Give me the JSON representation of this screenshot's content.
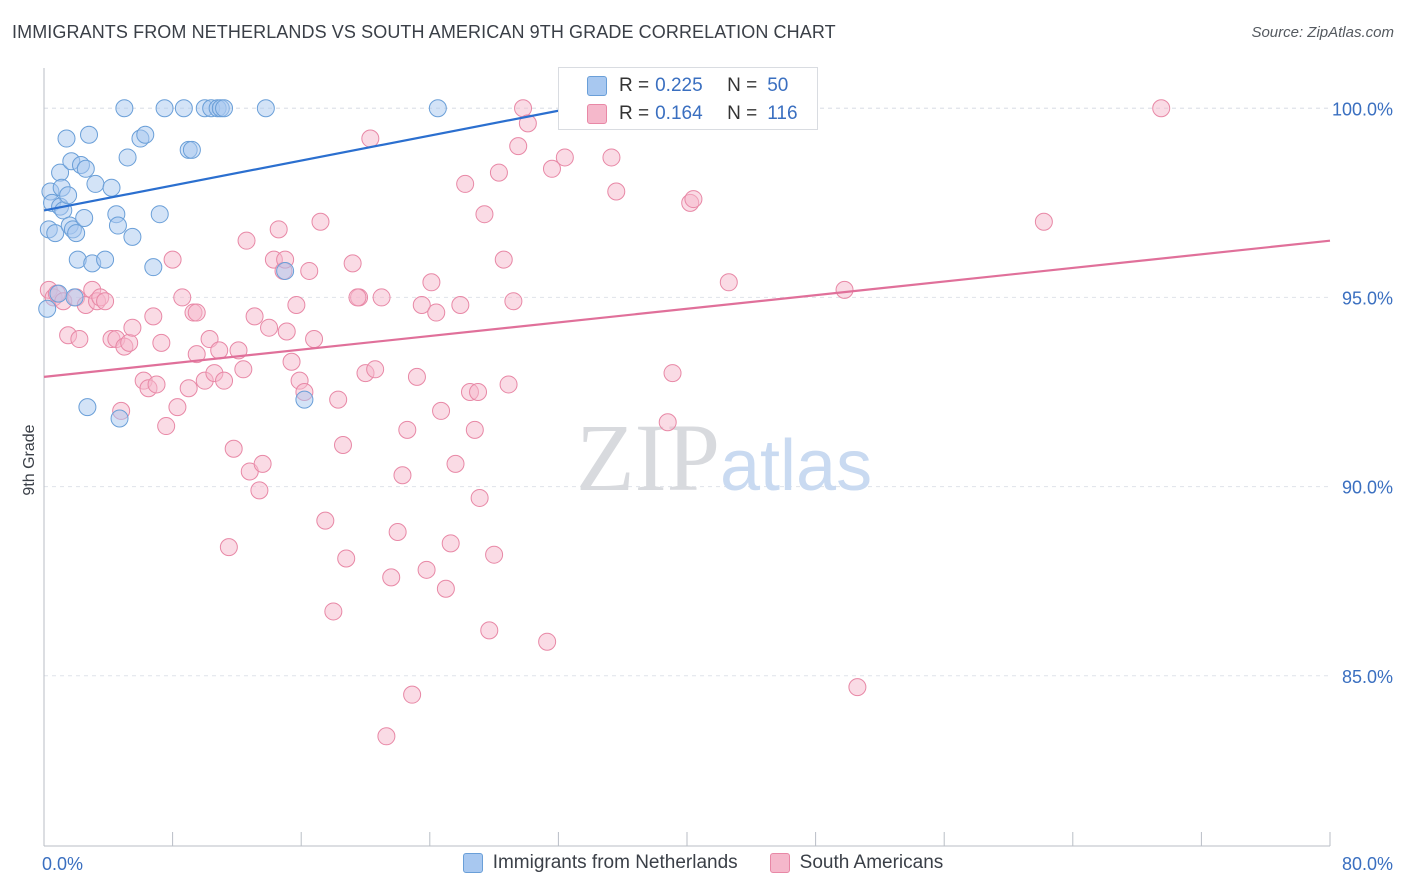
{
  "title": "IMMIGRANTS FROM NETHERLANDS VS SOUTH AMERICAN 9TH GRADE CORRELATION CHART",
  "source": "Source: ZipAtlas.com",
  "watermark": {
    "zip": "ZIP",
    "atlas": "atlas"
  },
  "colors": {
    "blue_fill": "#a8c8f0",
    "blue_stroke": "#6a9fd8",
    "blue_line": "#2b6fcf",
    "pink_fill": "#f5b8cb",
    "pink_stroke": "#e888a6",
    "pink_line": "#e0709a",
    "axis_text": "#3a6fc0",
    "grid": "#dfe3ea"
  },
  "stats": [
    {
      "r_label": "R =",
      "r_value": "0.225",
      "n_label": "N =",
      "n_value": "50"
    },
    {
      "r_label": "R =",
      "r_value": "0.164",
      "n_label": "N =",
      "n_value": "116"
    }
  ],
  "chart_data": {
    "type": "scatter",
    "title": "IMMIGRANTS FROM NETHERLANDS VS SOUTH AMERICAN 9TH GRADE CORRELATION CHART",
    "xlabel": "",
    "ylabel": "9th Grade",
    "xlim": [
      0,
      80
    ],
    "ylim": [
      80.5,
      100.8
    ],
    "x_tick_labels": [
      "0.0%",
      "80.0%"
    ],
    "y_ticks": [
      85,
      90,
      95,
      100
    ],
    "y_tick_labels": [
      "85.0%",
      "90.0%",
      "95.0%",
      "100.0%"
    ],
    "grid": true,
    "legend_position": "bottom",
    "series": [
      {
        "name": "Immigrants from Netherlands",
        "color": "blue",
        "trend": {
          "x": [
            0,
            34
          ],
          "y": [
            97.3,
            100.1
          ]
        },
        "points": [
          [
            0.2,
            94.7
          ],
          [
            0.3,
            96.8
          ],
          [
            0.4,
            97.8
          ],
          [
            0.5,
            97.5
          ],
          [
            0.7,
            96.7
          ],
          [
            1.0,
            97.4
          ],
          [
            1.0,
            98.3
          ],
          [
            1.1,
            97.9
          ],
          [
            1.2,
            97.3
          ],
          [
            1.4,
            99.2
          ],
          [
            1.5,
            97.7
          ],
          [
            1.6,
            96.9
          ],
          [
            1.7,
            98.6
          ],
          [
            1.8,
            96.8
          ],
          [
            2.0,
            96.7
          ],
          [
            2.1,
            96.0
          ],
          [
            2.3,
            98.5
          ],
          [
            2.5,
            97.1
          ],
          [
            2.6,
            98.4
          ],
          [
            2.8,
            99.3
          ],
          [
            3.0,
            95.9
          ],
          [
            3.2,
            98.0
          ],
          [
            3.8,
            96.0
          ],
          [
            4.2,
            97.9
          ],
          [
            4.5,
            97.2
          ],
          [
            4.6,
            96.9
          ],
          [
            5.0,
            100.0
          ],
          [
            5.2,
            98.7
          ],
          [
            5.5,
            96.6
          ],
          [
            6.0,
            99.2
          ],
          [
            6.3,
            99.3
          ],
          [
            6.8,
            95.8
          ],
          [
            7.2,
            97.2
          ],
          [
            7.5,
            100.0
          ],
          [
            8.7,
            100.0
          ],
          [
            9.0,
            98.9
          ],
          [
            9.2,
            98.9
          ],
          [
            10.0,
            100.0
          ],
          [
            10.4,
            100.0
          ],
          [
            10.8,
            100.0
          ],
          [
            11.0,
            100.0
          ],
          [
            11.2,
            100.0
          ],
          [
            13.8,
            100.0
          ],
          [
            15.0,
            95.7
          ],
          [
            16.2,
            92.3
          ],
          [
            24.5,
            100.0
          ],
          [
            2.7,
            92.1
          ],
          [
            4.7,
            91.8
          ],
          [
            0.9,
            95.1
          ],
          [
            1.9,
            95.0
          ]
        ]
      },
      {
        "name": "South Americans",
        "color": "pink",
        "trend": {
          "x": [
            0,
            80
          ],
          "y": [
            92.9,
            96.5
          ]
        },
        "points": [
          [
            0.3,
            95.2
          ],
          [
            0.6,
            95.0
          ],
          [
            0.8,
            95.1
          ],
          [
            1.2,
            94.9
          ],
          [
            1.5,
            94.0
          ],
          [
            2.0,
            95.0
          ],
          [
            2.2,
            93.9
          ],
          [
            2.6,
            94.8
          ],
          [
            3.0,
            95.2
          ],
          [
            3.3,
            94.9
          ],
          [
            3.5,
            95.0
          ],
          [
            3.8,
            94.9
          ],
          [
            4.2,
            93.9
          ],
          [
            4.5,
            93.9
          ],
          [
            4.8,
            92.0
          ],
          [
            5.0,
            93.7
          ],
          [
            5.3,
            93.8
          ],
          [
            5.5,
            94.2
          ],
          [
            6.2,
            92.8
          ],
          [
            6.5,
            92.6
          ],
          [
            6.8,
            94.5
          ],
          [
            7.0,
            92.7
          ],
          [
            7.3,
            93.8
          ],
          [
            7.6,
            91.6
          ],
          [
            8.0,
            96.0
          ],
          [
            8.3,
            92.1
          ],
          [
            8.6,
            95.0
          ],
          [
            9.0,
            92.6
          ],
          [
            9.3,
            94.6
          ],
          [
            9.5,
            94.6
          ],
          [
            10.0,
            92.8
          ],
          [
            10.3,
            93.9
          ],
          [
            10.6,
            93.0
          ],
          [
            10.9,
            93.6
          ],
          [
            11.2,
            92.8
          ],
          [
            11.5,
            88.4
          ],
          [
            11.8,
            91.0
          ],
          [
            12.1,
            93.6
          ],
          [
            12.4,
            93.1
          ],
          [
            12.6,
            96.5
          ],
          [
            12.8,
            90.4
          ],
          [
            13.1,
            94.5
          ],
          [
            13.4,
            89.9
          ],
          [
            13.6,
            90.6
          ],
          [
            14.0,
            94.2
          ],
          [
            14.3,
            96.0
          ],
          [
            14.6,
            96.8
          ],
          [
            14.9,
            95.7
          ],
          [
            15.1,
            94.1
          ],
          [
            15.4,
            93.3
          ],
          [
            15.7,
            94.8
          ],
          [
            15.9,
            92.8
          ],
          [
            16.2,
            92.5
          ],
          [
            16.5,
            95.7
          ],
          [
            16.8,
            93.9
          ],
          [
            17.2,
            97.0
          ],
          [
            17.5,
            89.1
          ],
          [
            18.0,
            86.7
          ],
          [
            18.3,
            92.3
          ],
          [
            18.6,
            91.1
          ],
          [
            18.8,
            88.1
          ],
          [
            19.2,
            95.9
          ],
          [
            19.6,
            95.0
          ],
          [
            20.0,
            93.0
          ],
          [
            20.3,
            99.2
          ],
          [
            20.6,
            93.1
          ],
          [
            21.0,
            95.0
          ],
          [
            21.3,
            83.4
          ],
          [
            21.6,
            87.6
          ],
          [
            22.0,
            88.8
          ],
          [
            22.3,
            90.3
          ],
          [
            22.6,
            91.5
          ],
          [
            22.9,
            84.5
          ],
          [
            23.2,
            92.9
          ],
          [
            23.5,
            94.8
          ],
          [
            23.8,
            87.8
          ],
          [
            24.1,
            95.4
          ],
          [
            24.4,
            94.6
          ],
          [
            24.7,
            92.0
          ],
          [
            25.0,
            87.3
          ],
          [
            25.3,
            88.5
          ],
          [
            25.6,
            90.6
          ],
          [
            25.9,
            94.8
          ],
          [
            26.2,
            98.0
          ],
          [
            26.5,
            92.5
          ],
          [
            26.8,
            91.5
          ],
          [
            27.1,
            89.7
          ],
          [
            27.4,
            97.2
          ],
          [
            27.7,
            86.2
          ],
          [
            28.0,
            88.2
          ],
          [
            28.3,
            98.3
          ],
          [
            28.6,
            96.0
          ],
          [
            28.9,
            92.7
          ],
          [
            29.2,
            94.9
          ],
          [
            29.5,
            99.0
          ],
          [
            29.8,
            100.0
          ],
          [
            30.1,
            99.6
          ],
          [
            31.3,
            85.9
          ],
          [
            31.6,
            98.4
          ],
          [
            32.4,
            98.7
          ],
          [
            35.3,
            98.7
          ],
          [
            35.6,
            97.8
          ],
          [
            38.5,
            99.7
          ],
          [
            38.8,
            91.7
          ],
          [
            39.1,
            93.0
          ],
          [
            40.2,
            97.5
          ],
          [
            40.4,
            97.6
          ],
          [
            42.6,
            95.4
          ],
          [
            49.8,
            95.2
          ],
          [
            50.6,
            84.7
          ],
          [
            62.2,
            97.0
          ],
          [
            69.5,
            100.0
          ],
          [
            15.0,
            96.0
          ],
          [
            9.5,
            93.5
          ],
          [
            19.5,
            95.0
          ],
          [
            27.0,
            92.5
          ]
        ]
      }
    ]
  },
  "legend": [
    {
      "label": "Immigrants from Netherlands"
    },
    {
      "label": "South Americans"
    }
  ]
}
